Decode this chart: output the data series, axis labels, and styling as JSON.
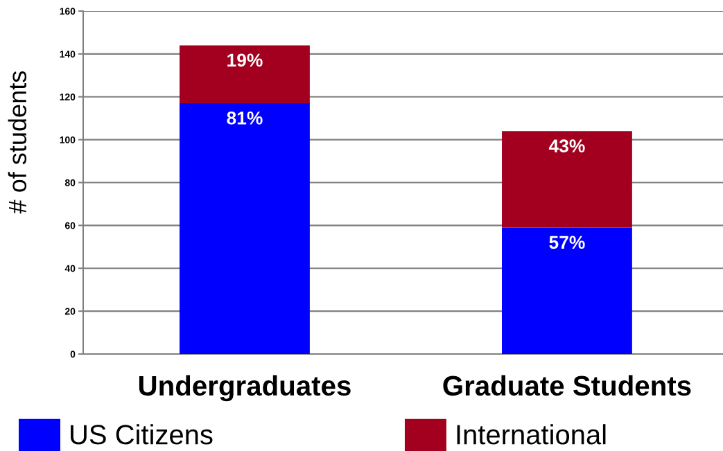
{
  "chart_data": {
    "type": "bar",
    "stacked": true,
    "categories": [
      "Undergraduates",
      "Graduate Students"
    ],
    "ylabel": "# of students",
    "ylim": [
      0,
      160
    ],
    "yticks": [
      0,
      20,
      40,
      60,
      80,
      100,
      120,
      140,
      160
    ],
    "grid": "y",
    "legend": "bottom",
    "series": [
      {
        "name": "US Citizens",
        "color": "#0000ff",
        "values": [
          117,
          59
        ]
      },
      {
        "name": "International",
        "color": "#a30020",
        "values": [
          27,
          45
        ]
      }
    ],
    "annotations": [
      {
        "text": "81%",
        "x": "Undergraduates",
        "y": 117
      },
      {
        "text": "19%",
        "x": "Undergraduates",
        "y": 144
      },
      {
        "text": "57%",
        "x": "Graduate Students",
        "y": 59
      },
      {
        "text": "43%",
        "x": "Graduate Students",
        "y": 104
      }
    ]
  }
}
